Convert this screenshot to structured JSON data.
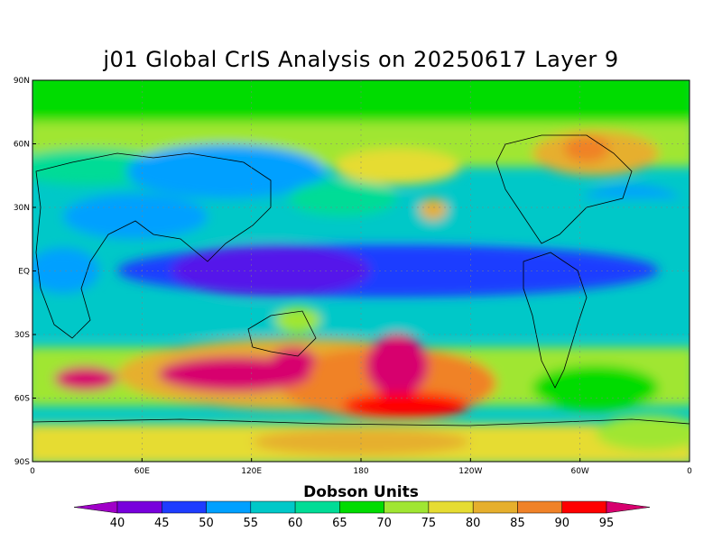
{
  "title": "j01 Global CrIS Analysis on 20250617 Layer 9",
  "colorbar": {
    "label": "Dobson Units",
    "ticks": [
      "40",
      "45",
      "50",
      "55",
      "60",
      "65",
      "70",
      "75",
      "80",
      "85",
      "90",
      "95"
    ],
    "colors": [
      "#a000c8",
      "#7800dc",
      "#1e3cff",
      "#00a0ff",
      "#00c8c8",
      "#00dc96",
      "#00dc00",
      "#a0e632",
      "#e6dc32",
      "#e6af2d",
      "#f08228",
      "#ff0000",
      "#d7006e"
    ]
  },
  "axes": {
    "lat_labels": [
      "90N",
      "60N",
      "30N",
      "EQ",
      "30S",
      "60S",
      "90S"
    ],
    "lon_labels": [
      "0",
      "60E",
      "120E",
      "180",
      "120W",
      "60W",
      "0"
    ]
  },
  "map_data": {
    "type": "filled-contour-map",
    "projection": "equirectangular",
    "lon_range": [
      0,
      360
    ],
    "lat_range": [
      -90,
      90
    ],
    "units": "Dobson Units",
    "value_range": [
      40,
      95
    ],
    "regions": [
      {
        "lon": [
          0,
          360
        ],
        "lat": [
          65,
          90
        ],
        "value": 70
      },
      {
        "lon": [
          60,
          340
        ],
        "lat": [
          -15,
          10
        ],
        "value": 47
      },
      {
        "lon": [
          80,
          170
        ],
        "lat": [
          -60,
          -40
        ],
        "value": 92
      },
      {
        "lon": [
          160,
          220
        ],
        "lat": [
          -70,
          -55
        ],
        "value": 94
      },
      {
        "lon": [
          5,
          40
        ],
        "lat": [
          -57,
          -47
        ],
        "value": 93
      },
      {
        "lon": [
          0,
          360
        ],
        "lat": [
          -90,
          -70
        ],
        "value": 77
      }
    ]
  }
}
